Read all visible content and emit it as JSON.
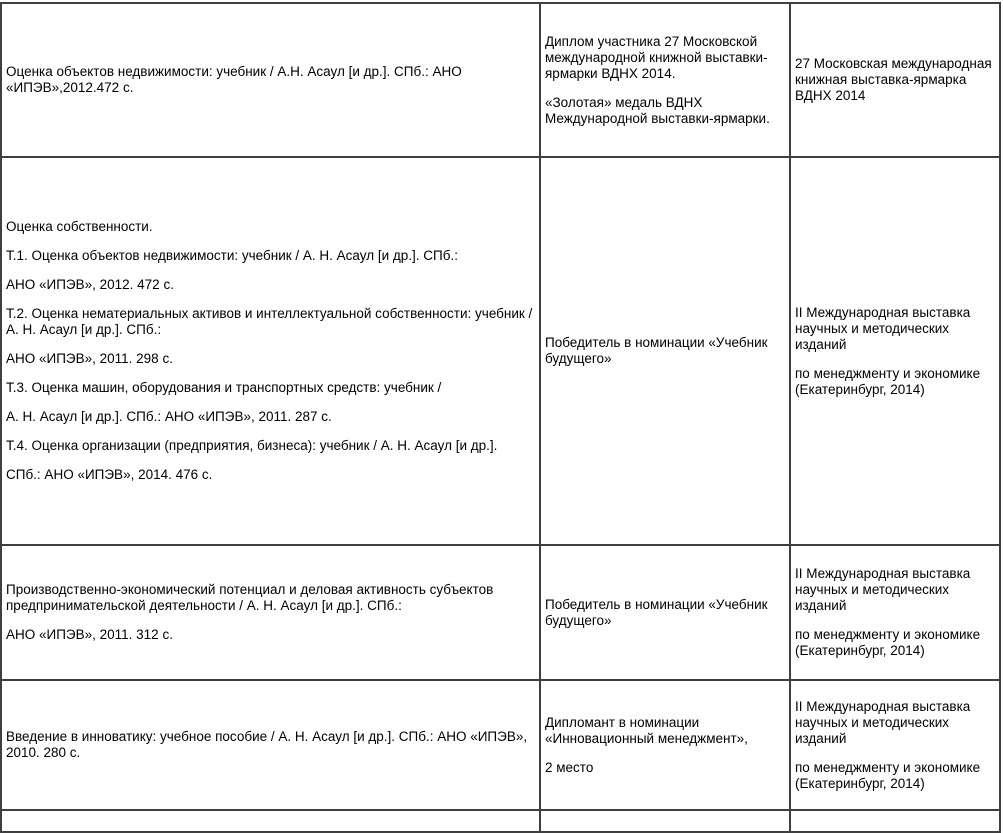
{
  "document": {
    "language": "ru",
    "type": "awards-table",
    "columns": [
      {
        "key": "book",
        "semantic": "publication-citation"
      },
      {
        "key": "award",
        "semantic": "award-description"
      },
      {
        "key": "exhibition",
        "semantic": "exhibition-name"
      }
    ],
    "rows": [
      {
        "book": [
          "Оценка объектов недвижимости: учебник / А.Н. Асаул [и др.]. СПб.: АНО «ИПЭВ»,2012.472 с."
        ],
        "award": [
          "Диплом участника 27 Московской международной книжной выставки-ярмарки ВДНХ 2014.",
          "«Золотая» медаль ВДНХ Международной выставки-ярмарки."
        ],
        "exhibition": [
          "27 Московская международная книжная выставка-ярмарка ВДНХ 2014"
        ]
      },
      {
        "book": [
          "Оценка собственности.",
          "Т.1. Оценка объектов недвижимости: учебник / А. Н. Асаул [и др.]. СПб.:",
          "АНО «ИПЭВ», 2012. 472 с.",
          "Т.2. Оценка нематериальных активов и интеллектуальной собственности: учебник / А. Н. Асаул [и др.]. СПб.:",
          "АНО «ИПЭВ», 2011. 298 с.",
          "Т.3. Оценка машин, оборудования и транспортных средств: учебник /",
          "А. Н. Асаул [и др.]. СПб.: АНО «ИПЭВ», 2011. 287 с.",
          "Т.4. Оценка организации (предприятия, бизнеса): учебник / А. Н. Асаул [и др.].",
          "СПб.: АНО «ИПЭВ», 2014. 476 с."
        ],
        "award": [
          "Победитель в номинации «Учебник будущего»"
        ],
        "exhibition": [
          "II Международная выставка научных и методических изданий",
          "по менеджменту и экономике (Екатеринбург, 2014)"
        ]
      },
      {
        "book": [
          "Производственно-экономический потенциал и деловая активность субъектов предпринимательской деятельности / А. Н. Асаул [и др.]. СПб.:",
          "АНО «ИПЭВ», 2011. 312 с."
        ],
        "award": [
          "Победитель в номинации «Учебник будущего»"
        ],
        "exhibition": [
          "II Международная выставка научных и методических изданий",
          "по менеджменту и экономике (Екатеринбург, 2014)"
        ]
      },
      {
        "book": [
          "Введение в инноватику: учебное пособие / А. Н. Асаул [и др.]. СПб.: АНО «ИПЭВ», 2010. 280 с."
        ],
        "award": [
          "Дипломант в номинации «Инновационный менеджмент»,",
          "2 место"
        ],
        "exhibition": [
          "II Международная выставка научных и методических изданий",
          "по менеджменту и экономике (Екатеринбург, 2014)"
        ]
      },
      {
        "book": [],
        "award": [],
        "exhibition": []
      }
    ],
    "colors": {
      "border": "#3f3f3f",
      "text": "#000000",
      "background": "#ffffff"
    }
  }
}
